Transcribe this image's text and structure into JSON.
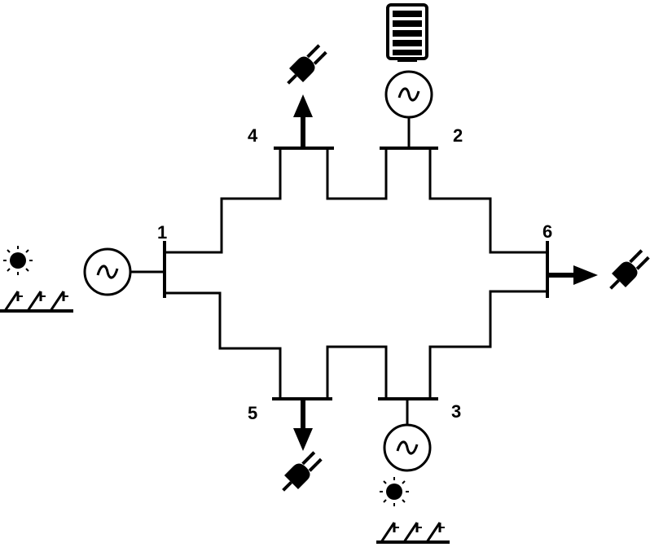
{
  "colors": {
    "ink": "#000000",
    "background": "#ffffff"
  },
  "buses": [
    {
      "id": "bus-1",
      "label": "1"
    },
    {
      "id": "bus-2",
      "label": "2"
    },
    {
      "id": "bus-3",
      "label": "3"
    },
    {
      "id": "bus-4",
      "label": "4"
    },
    {
      "id": "bus-5",
      "label": "5"
    },
    {
      "id": "bus-6",
      "label": "6"
    }
  ],
  "generators": [
    {
      "bus": "1",
      "source": "solar",
      "icon": "solar-panel-icon"
    },
    {
      "bus": "2",
      "source": "battery",
      "icon": "battery-icon"
    },
    {
      "bus": "3",
      "source": "solar",
      "icon": "solar-panel-icon"
    }
  ],
  "loads": [
    {
      "bus": "4",
      "icon": "plug-icon"
    },
    {
      "bus": "5",
      "icon": "plug-icon"
    },
    {
      "bus": "6",
      "icon": "plug-icon"
    }
  ]
}
